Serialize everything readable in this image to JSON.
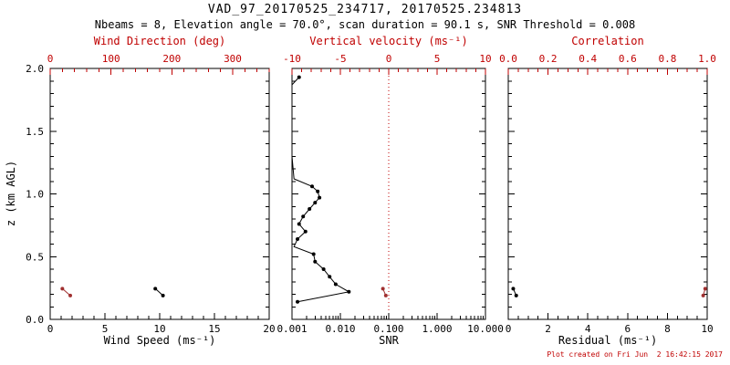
{
  "header": {
    "title": "VAD_97_20170525_234717, 20170525.234813",
    "subtitle": "Nbeams = 8, Elevation angle = 70.0°, scan duration = 90.1 s, SNR Threshold = 0.008"
  },
  "footer": {
    "created": "Plot created on Fri Jun  2 16:42:15 2017"
  },
  "colors": {
    "frame": "#000000",
    "axis_red": "#c00000",
    "series_black": "#000000",
    "series_red": "#a03030"
  },
  "axes": {
    "y_label": "z (km AGL)",
    "y": {
      "min": 0,
      "max": 2,
      "ticks": [
        0,
        0.5,
        1,
        1.5,
        2
      ],
      "labels": [
        "0.0",
        "0.5",
        "1.0",
        "1.5",
        "2.0"
      ],
      "minor": 0.1
    }
  },
  "chart_data": [
    {
      "type": "scatter",
      "name": "wind",
      "xlabel_bottom": "Wind Speed (ms⁻¹)",
      "xlabel_top": "Wind Direction (deg)",
      "x_bottom": {
        "scale": "linear",
        "min": 0,
        "max": 20,
        "ticks": [
          0,
          5,
          10,
          15,
          20
        ],
        "labels": [
          "0",
          "5",
          "10",
          "15",
          "20"
        ],
        "minor": 1
      },
      "x_top": {
        "min": 0,
        "max": 360,
        "ticks": [
          0,
          100,
          200,
          300
        ],
        "labels": [
          "0",
          "100",
          "200",
          "300"
        ],
        "minor": 20
      },
      "series": [
        {
          "name": "wind-speed",
          "axis": "bottom",
          "color": "black",
          "points": [
            [
              9.6,
              0.245
            ],
            [
              10.3,
              0.19
            ]
          ]
        },
        {
          "name": "wind-direction",
          "axis": "top",
          "color": "red",
          "points": [
            [
              20,
              0.245
            ],
            [
              33,
              0.19
            ]
          ]
        }
      ]
    },
    {
      "type": "scatter",
      "name": "snr",
      "xlabel_bottom": "SNR",
      "xlabel_top": "Vertical velocity (ms⁻¹)",
      "x_bottom": {
        "scale": "log",
        "min": 0.001,
        "max": 10,
        "ticks": [
          0.001,
          0.01,
          0.1,
          1,
          10
        ],
        "labels": [
          "0.001",
          "0.010",
          "0.100",
          "1.000",
          "10.000"
        ]
      },
      "x_top": {
        "min": -10,
        "max": 10,
        "ticks": [
          -10,
          -5,
          0,
          5,
          10
        ],
        "labels": [
          "-10",
          "-5",
          "0",
          "5",
          "10"
        ],
        "minor": 1
      },
      "refline_top": 0,
      "series": [
        {
          "name": "snr-profile",
          "axis": "bottom",
          "color": "black",
          "dot_min_x": 0.0012,
          "points": [
            [
              0.0013,
              0.14
            ],
            [
              0.015,
              0.22
            ],
            [
              0.008,
              0.28
            ],
            [
              0.006,
              0.34
            ],
            [
              0.0045,
              0.4
            ],
            [
              0.003,
              0.46
            ],
            [
              0.0028,
              0.52
            ],
            [
              0.0011,
              0.58
            ],
            [
              0.0013,
              0.64
            ],
            [
              0.0019,
              0.7
            ],
            [
              0.0014,
              0.76
            ],
            [
              0.0017,
              0.82
            ],
            [
              0.0023,
              0.88
            ],
            [
              0.003,
              0.93
            ],
            [
              0.0037,
              0.97
            ],
            [
              0.0034,
              1.02
            ],
            [
              0.0026,
              1.06
            ],
            [
              0.0011,
              1.12
            ],
            [
              0.001,
              1.3
            ],
            [
              0.001,
              1.6
            ],
            [
              0.001,
              1.87
            ],
            [
              0.0014,
              1.93
            ]
          ]
        },
        {
          "name": "vertical-velocity",
          "axis": "top",
          "color": "red",
          "points": [
            [
              -0.6,
              0.245
            ],
            [
              -0.3,
              0.19
            ]
          ]
        }
      ]
    },
    {
      "type": "scatter",
      "name": "residual",
      "xlabel_bottom": "Residual (ms⁻¹)",
      "xlabel_top": "Correlation",
      "x_bottom": {
        "scale": "linear",
        "min": 0,
        "max": 10,
        "ticks": [
          0,
          2,
          4,
          6,
          8,
          10
        ],
        "labels": [
          "0",
          "2",
          "4",
          "6",
          "8",
          "10"
        ],
        "minor": 0.5
      },
      "x_top": {
        "min": 0,
        "max": 1,
        "ticks": [
          0,
          0.2,
          0.4,
          0.6,
          0.8,
          1
        ],
        "labels": [
          "0.0",
          "0.2",
          "0.4",
          "0.6",
          "0.8",
          "1.0"
        ],
        "minor": 0.05
      },
      "series": [
        {
          "name": "residual",
          "axis": "bottom",
          "color": "black",
          "points": [
            [
              0.25,
              0.245
            ],
            [
              0.4,
              0.19
            ]
          ]
        },
        {
          "name": "correlation",
          "axis": "top",
          "color": "red",
          "points": [
            [
              0.99,
              0.245
            ],
            [
              0.98,
              0.19
            ]
          ]
        }
      ]
    }
  ]
}
